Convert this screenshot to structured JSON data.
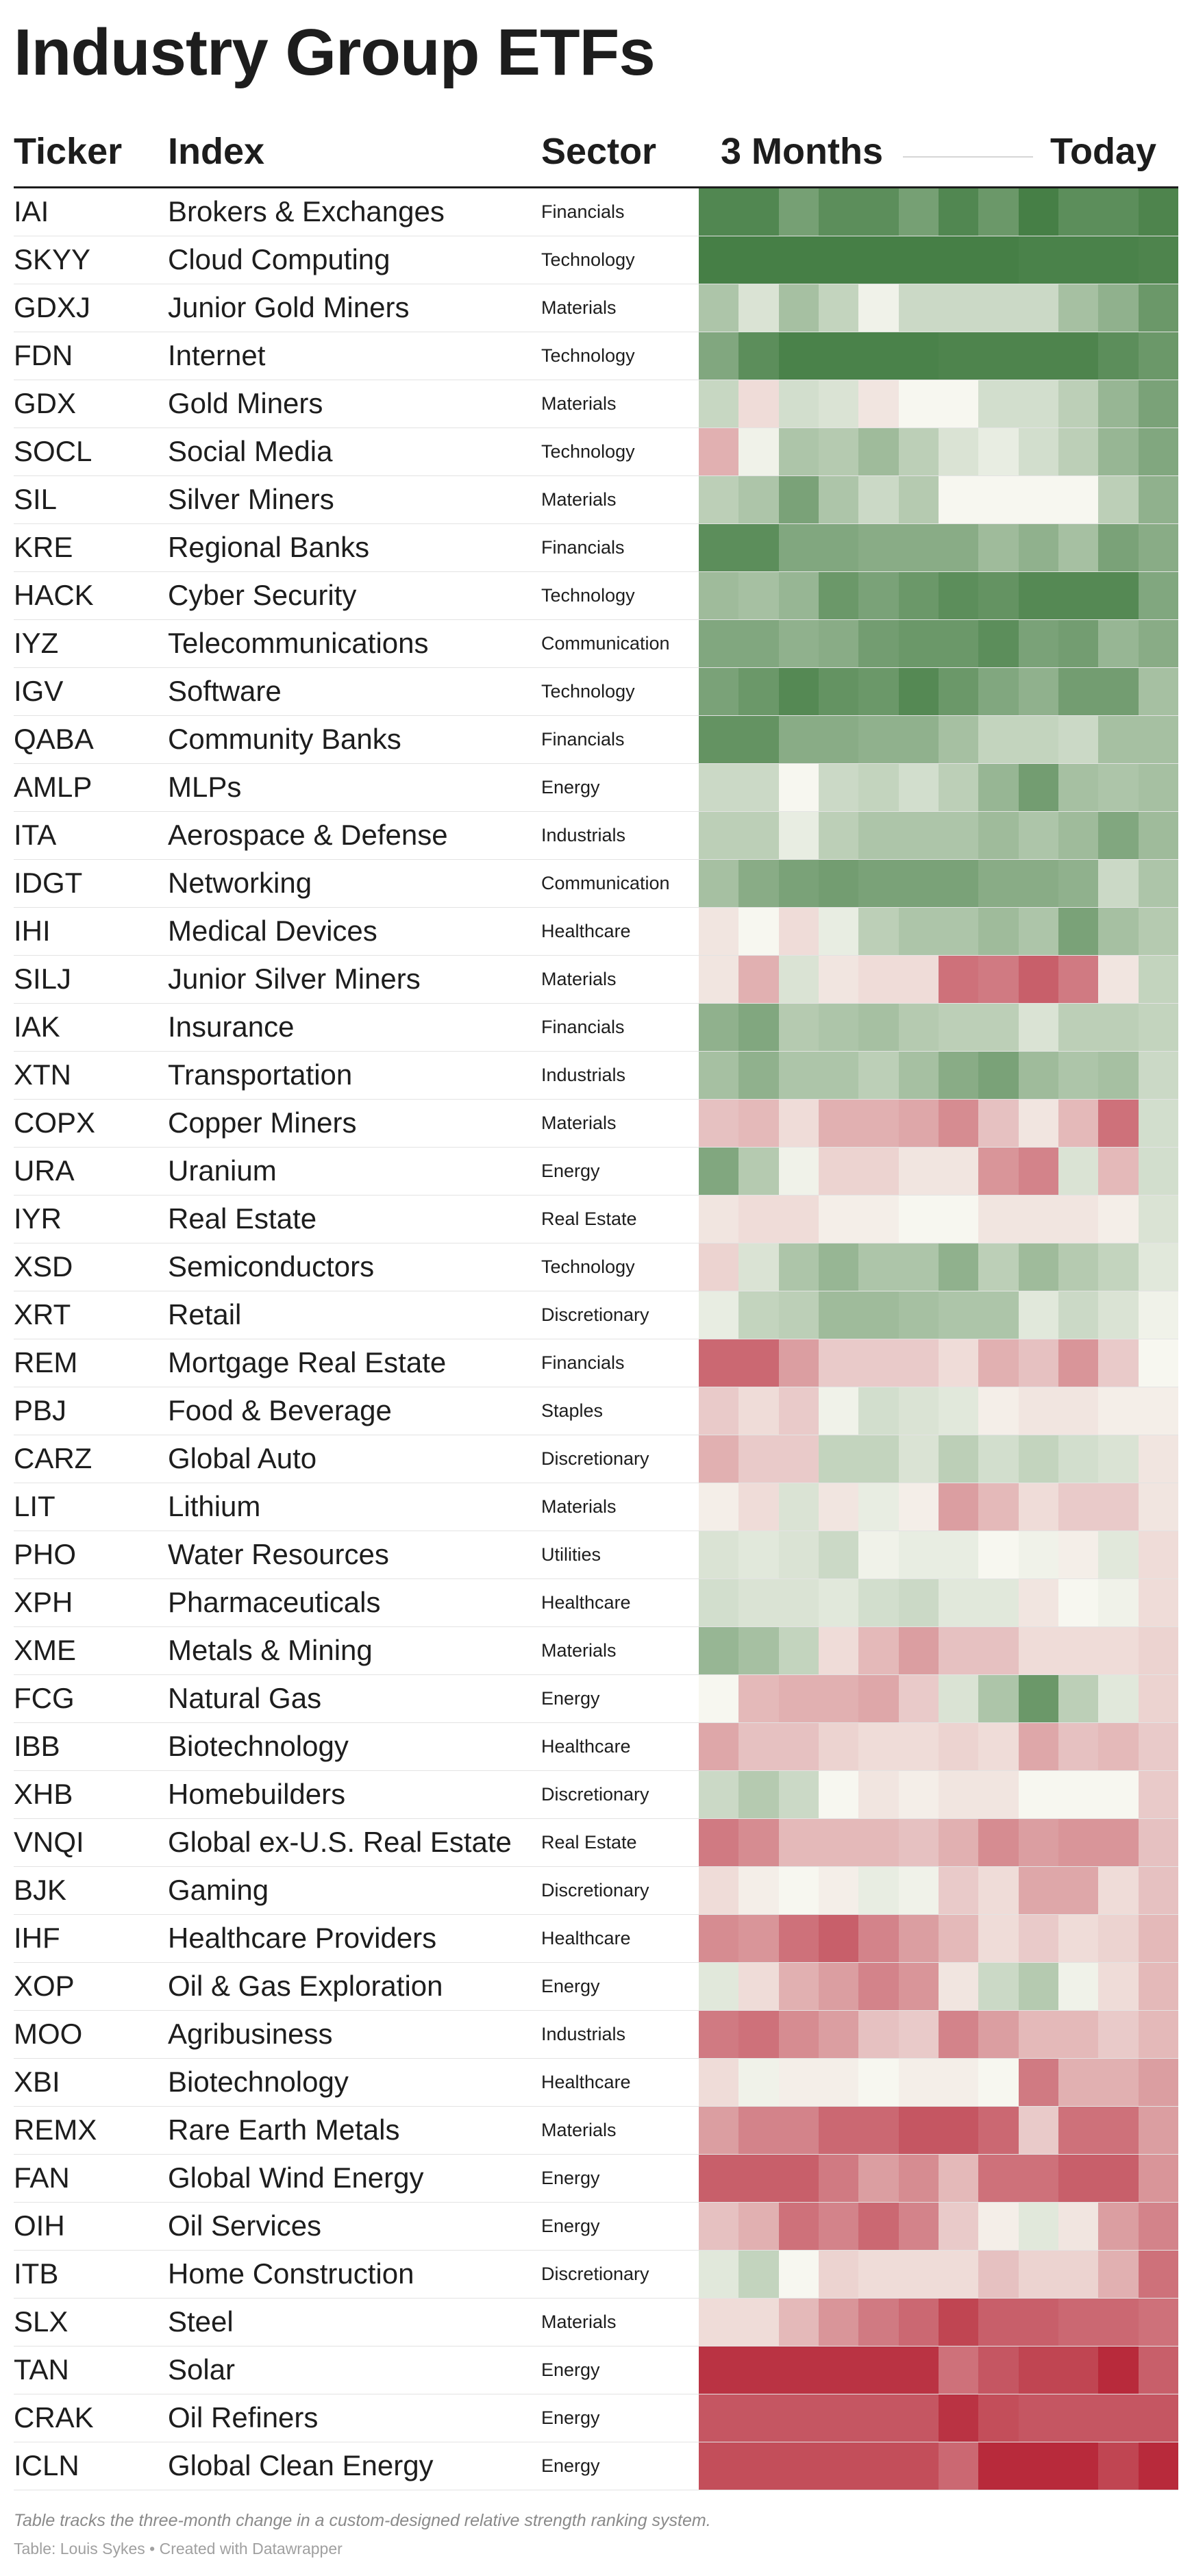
{
  "title": "Industry Group ETFs",
  "headers": {
    "ticker": "Ticker",
    "index": "Index",
    "sector": "Sector",
    "start": "3 Months",
    "end": "Today"
  },
  "footer": {
    "note": "Table tracks the three-month change in a custom-designed relative strength ranking system.",
    "source": "Table: Louis Sykes • Created with Datawrapper"
  },
  "chart_data": {
    "type": "heatmap",
    "x_range_label": [
      "3 Months",
      "Today"
    ],
    "columns": 12,
    "value_scale": {
      "min": 0,
      "max": 100,
      "low_color": "#b2182b",
      "mid_color": "#f7f7f0",
      "high_color": "#3f7a3f"
    },
    "rows": [
      {
        "ticker": "IAI",
        "index": "Brokers & Exchanges",
        "sector": "Financials",
        "values": [
          95,
          95,
          85,
          92,
          92,
          85,
          95,
          88,
          98,
          92,
          92,
          96
        ]
      },
      {
        "ticker": "SKYY",
        "index": "Cloud Computing",
        "sector": "Technology",
        "values": [
          98,
          98,
          98,
          98,
          98,
          98,
          98,
          98,
          97,
          97,
          97,
          96
        ]
      },
      {
        "ticker": "GDXJ",
        "index": "Junior Gold Miners",
        "sector": "Materials",
        "values": [
          70,
          58,
          72,
          64,
          52,
          62,
          62,
          62,
          62,
          72,
          78,
          88
        ]
      },
      {
        "ticker": "FDN",
        "index": "Internet",
        "sector": "Technology",
        "values": [
          82,
          92,
          97,
          97,
          97,
          97,
          96,
          96,
          96,
          96,
          92,
          88
        ]
      },
      {
        "ticker": "GDX",
        "index": "Gold Miners",
        "sector": "Materials",
        "values": [
          63,
          44,
          60,
          58,
          46,
          50,
          50,
          60,
          60,
          66,
          76,
          84
        ]
      },
      {
        "ticker": "SOCL",
        "index": "Social Media",
        "sector": "Technology",
        "values": [
          34,
          52,
          70,
          68,
          74,
          66,
          58,
          54,
          60,
          66,
          76,
          82
        ]
      },
      {
        "ticker": "SIL",
        "index": "Silver Miners",
        "sector": "Materials",
        "values": [
          66,
          70,
          84,
          70,
          62,
          68,
          50,
          50,
          50,
          50,
          66,
          78
        ]
      },
      {
        "ticker": "KRE",
        "index": "Regional Banks",
        "sector": "Financials",
        "values": [
          92,
          92,
          82,
          82,
          80,
          80,
          80,
          74,
          78,
          72,
          84,
          80
        ]
      },
      {
        "ticker": "HACK",
        "index": "Cyber Security",
        "sector": "Technology",
        "values": [
          74,
          72,
          76,
          88,
          84,
          88,
          92,
          90,
          94,
          94,
          94,
          82
        ]
      },
      {
        "ticker": "IYZ",
        "index": "Telecommunications",
        "sector": "Communication",
        "values": [
          82,
          82,
          78,
          80,
          86,
          88,
          88,
          92,
          84,
          86,
          76,
          80
        ]
      },
      {
        "ticker": "IGV",
        "index": "Software",
        "sector": "Technology",
        "values": [
          84,
          88,
          94,
          90,
          88,
          94,
          88,
          82,
          78,
          86,
          86,
          72
        ]
      },
      {
        "ticker": "QABA",
        "index": "Community Banks",
        "sector": "Financials",
        "values": [
          90,
          90,
          80,
          80,
          78,
          78,
          72,
          64,
          64,
          62,
          72,
          72
        ]
      },
      {
        "ticker": "AMLP",
        "index": "MLPs",
        "sector": "Energy",
        "values": [
          62,
          62,
          50,
          62,
          64,
          60,
          66,
          76,
          86,
          72,
          70,
          72
        ]
      },
      {
        "ticker": "ITA",
        "index": "Aerospace & Defense",
        "sector": "Industrials",
        "values": [
          66,
          66,
          54,
          66,
          70,
          70,
          70,
          74,
          70,
          74,
          82,
          74
        ]
      },
      {
        "ticker": "IDGT",
        "index": "Networking",
        "sector": "Communication",
        "values": [
          72,
          80,
          84,
          86,
          84,
          84,
          84,
          80,
          80,
          78,
          62,
          70
        ]
      },
      {
        "ticker": "IHI",
        "index": "Medical Devices",
        "sector": "Healthcare",
        "values": [
          46,
          50,
          44,
          54,
          66,
          70,
          70,
          74,
          70,
          84,
          72,
          68
        ]
      },
      {
        "ticker": "SILJ",
        "index": "Junior Silver Miners",
        "sector": "Materials",
        "values": [
          46,
          34,
          58,
          46,
          44,
          44,
          20,
          22,
          16,
          22,
          46,
          64
        ]
      },
      {
        "ticker": "IAK",
        "index": "Insurance",
        "sector": "Financials",
        "values": [
          78,
          82,
          68,
          70,
          72,
          68,
          66,
          66,
          58,
          66,
          66,
          64
        ]
      },
      {
        "ticker": "XTN",
        "index": "Transportation",
        "sector": "Industrials",
        "values": [
          72,
          78,
          70,
          70,
          66,
          72,
          80,
          84,
          74,
          70,
          72,
          62
        ]
      },
      {
        "ticker": "COPX",
        "index": "Copper Miners",
        "sector": "Materials",
        "values": [
          38,
          36,
          44,
          34,
          34,
          32,
          26,
          38,
          46,
          36,
          20,
          60
        ]
      },
      {
        "ticker": "URA",
        "index": "Uranium",
        "sector": "Energy",
        "values": [
          82,
          68,
          52,
          42,
          42,
          46,
          46,
          28,
          24,
          58,
          36,
          60
        ]
      },
      {
        "ticker": "IYR",
        "index": "Real Estate",
        "sector": "Real Estate",
        "values": [
          46,
          44,
          44,
          48,
          48,
          50,
          50,
          46,
          46,
          46,
          48,
          58
        ]
      },
      {
        "ticker": "XSD",
        "index": "Semiconductors",
        "sector": "Technology",
        "values": [
          42,
          58,
          70,
          76,
          70,
          70,
          78,
          66,
          74,
          68,
          64,
          56
        ]
      },
      {
        "ticker": "XRT",
        "index": "Retail",
        "sector": "Discretionary",
        "values": [
          54,
          64,
          66,
          74,
          74,
          72,
          70,
          70,
          56,
          62,
          58,
          52
        ]
      },
      {
        "ticker": "REM",
        "index": "Mortgage Real Estate",
        "sector": "Financials",
        "values": [
          18,
          18,
          30,
          40,
          40,
          40,
          44,
          34,
          38,
          28,
          40,
          50
        ]
      },
      {
        "ticker": "PBJ",
        "index": "Food & Beverage",
        "sector": "Staples",
        "values": [
          40,
          44,
          40,
          52,
          60,
          58,
          56,
          48,
          46,
          46,
          48,
          48
        ]
      },
      {
        "ticker": "CARZ",
        "index": "Global Auto",
        "sector": "Discretionary",
        "values": [
          34,
          40,
          40,
          64,
          64,
          58,
          66,
          60,
          64,
          60,
          58,
          46
        ]
      },
      {
        "ticker": "LIT",
        "index": "Lithium",
        "sector": "Materials",
        "values": [
          48,
          44,
          58,
          46,
          54,
          48,
          30,
          36,
          44,
          40,
          40,
          46
        ]
      },
      {
        "ticker": "PHO",
        "index": "Water Resources",
        "sector": "Utilities",
        "values": [
          58,
          56,
          58,
          62,
          52,
          54,
          54,
          50,
          52,
          48,
          56,
          44
        ]
      },
      {
        "ticker": "XPH",
        "index": "Pharmaceuticals",
        "sector": "Healthcare",
        "values": [
          60,
          58,
          58,
          56,
          60,
          62,
          56,
          56,
          46,
          50,
          52,
          44
        ]
      },
      {
        "ticker": "XME",
        "index": "Metals & Mining",
        "sector": "Materials",
        "values": [
          76,
          72,
          64,
          44,
          36,
          30,
          38,
          38,
          44,
          44,
          44,
          42
        ]
      },
      {
        "ticker": "FCG",
        "index": "Natural Gas",
        "sector": "Energy",
        "values": [
          50,
          36,
          34,
          34,
          32,
          40,
          58,
          70,
          88,
          66,
          56,
          42
        ]
      },
      {
        "ticker": "IBB",
        "index": "Biotechnology",
        "sector": "Healthcare",
        "values": [
          32,
          38,
          38,
          42,
          44,
          44,
          42,
          44,
          32,
          38,
          36,
          40
        ]
      },
      {
        "ticker": "XHB",
        "index": "Homebuilders",
        "sector": "Discretionary",
        "values": [
          62,
          68,
          62,
          50,
          46,
          48,
          46,
          46,
          50,
          50,
          50,
          40
        ]
      },
      {
        "ticker": "VNQI",
        "index": "Global ex-U.S. Real Estate",
        "sector": "Real Estate",
        "values": [
          22,
          26,
          36,
          36,
          36,
          38,
          34,
          26,
          30,
          28,
          28,
          38
        ]
      },
      {
        "ticker": "BJK",
        "index": "Gaming",
        "sector": "Discretionary",
        "values": [
          44,
          48,
          50,
          48,
          54,
          52,
          40,
          44,
          32,
          32,
          44,
          38
        ]
      },
      {
        "ticker": "IHF",
        "index": "Healthcare Providers",
        "sector": "Healthcare",
        "values": [
          26,
          28,
          20,
          16,
          24,
          30,
          36,
          44,
          40,
          44,
          42,
          36
        ]
      },
      {
        "ticker": "XOP",
        "index": "Oil & Gas Exploration",
        "sector": "Energy",
        "values": [
          56,
          44,
          34,
          30,
          24,
          28,
          46,
          62,
          68,
          52,
          44,
          36
        ]
      },
      {
        "ticker": "MOO",
        "index": "Agribusiness",
        "sector": "Industrials",
        "values": [
          22,
          20,
          26,
          30,
          38,
          40,
          24,
          30,
          36,
          36,
          40,
          36
        ]
      },
      {
        "ticker": "XBI",
        "index": "Biotechnology",
        "sector": "Healthcare",
        "values": [
          44,
          52,
          48,
          48,
          50,
          48,
          48,
          50,
          22,
          34,
          34,
          30
        ]
      },
      {
        "ticker": "REMX",
        "index": "Rare Earth Metals",
        "sector": "Materials",
        "values": [
          30,
          24,
          24,
          18,
          18,
          14,
          14,
          18,
          40,
          20,
          20,
          30
        ]
      },
      {
        "ticker": "FAN",
        "index": "Global Wind Energy",
        "sector": "Energy",
        "values": [
          16,
          16,
          16,
          22,
          30,
          26,
          36,
          20,
          20,
          16,
          16,
          28
        ]
      },
      {
        "ticker": "OIH",
        "index": "Oil Services",
        "sector": "Energy",
        "values": [
          38,
          34,
          20,
          24,
          18,
          24,
          40,
          48,
          56,
          46,
          30,
          24
        ]
      },
      {
        "ticker": "ITB",
        "index": "Home Construction",
        "sector": "Discretionary",
        "values": [
          56,
          64,
          50,
          42,
          44,
          44,
          44,
          38,
          42,
          42,
          34,
          20
        ]
      },
      {
        "ticker": "SLX",
        "index": "Steel",
        "sector": "Materials",
        "values": [
          44,
          44,
          36,
          28,
          22,
          18,
          10,
          16,
          16,
          18,
          18,
          20
        ]
      },
      {
        "ticker": "TAN",
        "index": "Solar",
        "sector": "Energy",
        "values": [
          6,
          6,
          6,
          6,
          6,
          6,
          20,
          14,
          10,
          10,
          4,
          16
        ]
      },
      {
        "ticker": "CRAK",
        "index": "Oil Refiners",
        "sector": "Energy",
        "values": [
          14,
          14,
          14,
          14,
          14,
          14,
          6,
          12,
          14,
          14,
          14,
          14
        ]
      },
      {
        "ticker": "ICLN",
        "index": "Global Clean Energy",
        "sector": "Energy",
        "values": [
          12,
          12,
          12,
          12,
          12,
          12,
          18,
          4,
          4,
          4,
          10,
          4
        ]
      }
    ]
  }
}
